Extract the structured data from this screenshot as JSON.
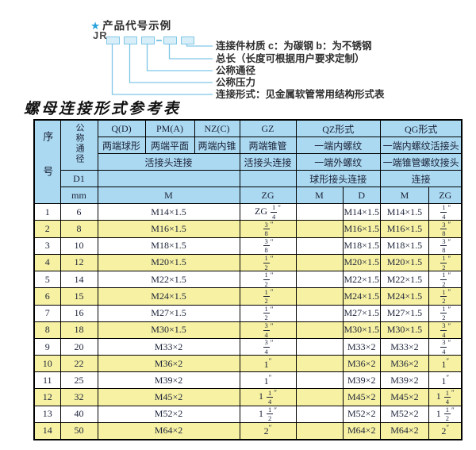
{
  "diagram": {
    "star": "★",
    "heading": "产品代号示例",
    "code_prefix": "JR",
    "labels": [
      "连接件材质  c：为碳钢  b：为不锈钢",
      "总长（长度可根据用户要求定制）",
      "公称通径",
      "公称压力",
      "连接形式：见金属软管常用结构形式表"
    ],
    "line_color": "#7fc6e6"
  },
  "table_title": "螺母连接形式参考表",
  "colors": {
    "header_bg": "#abd9f1",
    "row_alt_bg": "#f7f1a3",
    "border": "#000000",
    "accent_blue": "#2aa3dc"
  },
  "table": {
    "header": {
      "seq": "序号",
      "dn": "公称通径",
      "d1": "D1",
      "mm": "mm",
      "q": "Q(D)",
      "pm": "PM(A)",
      "nz": "NZ(C)",
      "gz": "GZ",
      "qz": "QZ形式",
      "qg": "QG形式",
      "q_sub": "两端球形",
      "pm_sub": "两端平面",
      "nz_sub": "两端内锥",
      "gz_sub": "两端锥管",
      "qz_sub": "一端内螺纹",
      "qg_sub": "一端内螺纹活接头",
      "union_conn": "活接头连接",
      "gz_conn": "活接头连接",
      "qz_conn2": "一端外螺纹",
      "qg_conn2": "一端锥管螺纹接头",
      "qz_conn3": "球形接头连接",
      "qg_conn3": "连接",
      "m": "M",
      "zg": "ZG",
      "qz_m": "M",
      "qz_d": "D",
      "qg_m": "M",
      "qg_zg": "ZG"
    },
    "rows": [
      {
        "no": "1",
        "dn": "6",
        "m": "M14×1.5",
        "gz": "ZG 1/4″",
        "qz_m": "",
        "qz_d": "M14×1.5",
        "qg_m": "M14×1.5",
        "qg_zg": "1/4″"
      },
      {
        "no": "2",
        "dn": "8",
        "m": "M16×1.5",
        "gz": "3/8″",
        "qz_m": "",
        "qz_d": "M16×1.5",
        "qg_m": "M16×1.5",
        "qg_zg": "3/8″"
      },
      {
        "no": "3",
        "dn": "10",
        "m": "M18×1.5",
        "gz": "3/8″",
        "qz_m": "",
        "qz_d": "M18×1.5",
        "qg_m": "M18×1.5",
        "qg_zg": "3/8″"
      },
      {
        "no": "4",
        "dn": "12",
        "m": "M20×1.5",
        "gz": "1/2″",
        "qz_m": "",
        "qz_d": "M20×1.5",
        "qg_m": "M20×1.5",
        "qg_zg": "1/2″"
      },
      {
        "no": "5",
        "dn": "14",
        "m": "M22×1.5",
        "gz": "1/2″",
        "qz_m": "",
        "qz_d": "M22×1.5",
        "qg_m": "M22×1.5",
        "qg_zg": "1/2″"
      },
      {
        "no": "6",
        "dn": "15",
        "m": "M24×1.5",
        "gz": "1/2″",
        "qz_m": "",
        "qz_d": "M24×1.5",
        "qg_m": "M24×1.5",
        "qg_zg": "1/2″"
      },
      {
        "no": "7",
        "dn": "16",
        "m": "M27×1.5",
        "gz": "1/2″",
        "qz_m": "",
        "qz_d": "M27×1.5",
        "qg_m": "M27×1.5",
        "qg_zg": "1/2″"
      },
      {
        "no": "8",
        "dn": "18",
        "m": "M30×1.5",
        "gz": "3/4″",
        "qz_m": "",
        "qz_d": "M30×1.5",
        "qg_m": "M30×1.5",
        "qg_zg": "3/4″"
      },
      {
        "no": "9",
        "dn": "20",
        "m": "M33×2",
        "gz": "3/4″",
        "qz_m": "",
        "qz_d": "M33×2",
        "qg_m": "M33×2",
        "qg_zg": "3/4″"
      },
      {
        "no": "10",
        "dn": "22",
        "m": "M36×2",
        "gz": "1″",
        "qz_m": "",
        "qz_d": "M36×2",
        "qg_m": "M36×2",
        "qg_zg": "1″"
      },
      {
        "no": "11",
        "dn": "25",
        "m": "M39×2",
        "gz": "1″",
        "qz_m": "",
        "qz_d": "M39×2",
        "qg_m": "M39×2",
        "qg_zg": "1″"
      },
      {
        "no": "12",
        "dn": "32",
        "m": "M45×2",
        "gz": "1 1/4″",
        "qz_m": "",
        "qz_d": "M45×2",
        "qg_m": "M45×2",
        "qg_zg": "1 1/4″"
      },
      {
        "no": "13",
        "dn": "40",
        "m": "M52×2",
        "gz": "1 1/2″",
        "qz_m": "",
        "qz_d": "M52×2",
        "qg_m": "M52×2",
        "qg_zg": "1 1/2″"
      },
      {
        "no": "14",
        "dn": "50",
        "m": "M64×2",
        "gz": "2″",
        "qz_m": "",
        "qz_d": "M64×2",
        "qg_m": "M64×2",
        "qg_zg": "2″"
      }
    ]
  }
}
